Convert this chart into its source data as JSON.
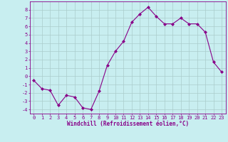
{
  "x": [
    0,
    1,
    2,
    3,
    4,
    5,
    6,
    7,
    8,
    9,
    10,
    11,
    12,
    13,
    14,
    15,
    16,
    17,
    18,
    19,
    20,
    21,
    22,
    23
  ],
  "y": [
    -0.5,
    -1.5,
    -1.7,
    -3.5,
    -2.3,
    -2.5,
    -3.8,
    -4.0,
    -1.8,
    1.3,
    3.0,
    4.2,
    6.5,
    7.5,
    8.3,
    7.2,
    6.3,
    6.3,
    7.0,
    6.3,
    6.3,
    5.3,
    1.7,
    0.5
  ],
  "line_color": "#880088",
  "marker": "D",
  "marker_size": 2.0,
  "bg_color": "#c8eef0",
  "grid_color": "#aacccc",
  "xlabel": "Windchill (Refroidissement éolien,°C)",
  "xlabel_color": "#880088",
  "tick_color": "#880088",
  "spine_color": "#880088",
  "ylim": [
    -4.5,
    9.0
  ],
  "xlim": [
    -0.5,
    23.5
  ],
  "yticks": [
    -4,
    -3,
    -2,
    -1,
    0,
    1,
    2,
    3,
    4,
    5,
    6,
    7,
    8
  ],
  "xticks": [
    0,
    1,
    2,
    3,
    4,
    5,
    6,
    7,
    8,
    9,
    10,
    11,
    12,
    13,
    14,
    15,
    16,
    17,
    18,
    19,
    20,
    21,
    22,
    23
  ],
  "tick_fontsize": 5.0,
  "xlabel_fontsize": 5.5,
  "linewidth": 0.8
}
